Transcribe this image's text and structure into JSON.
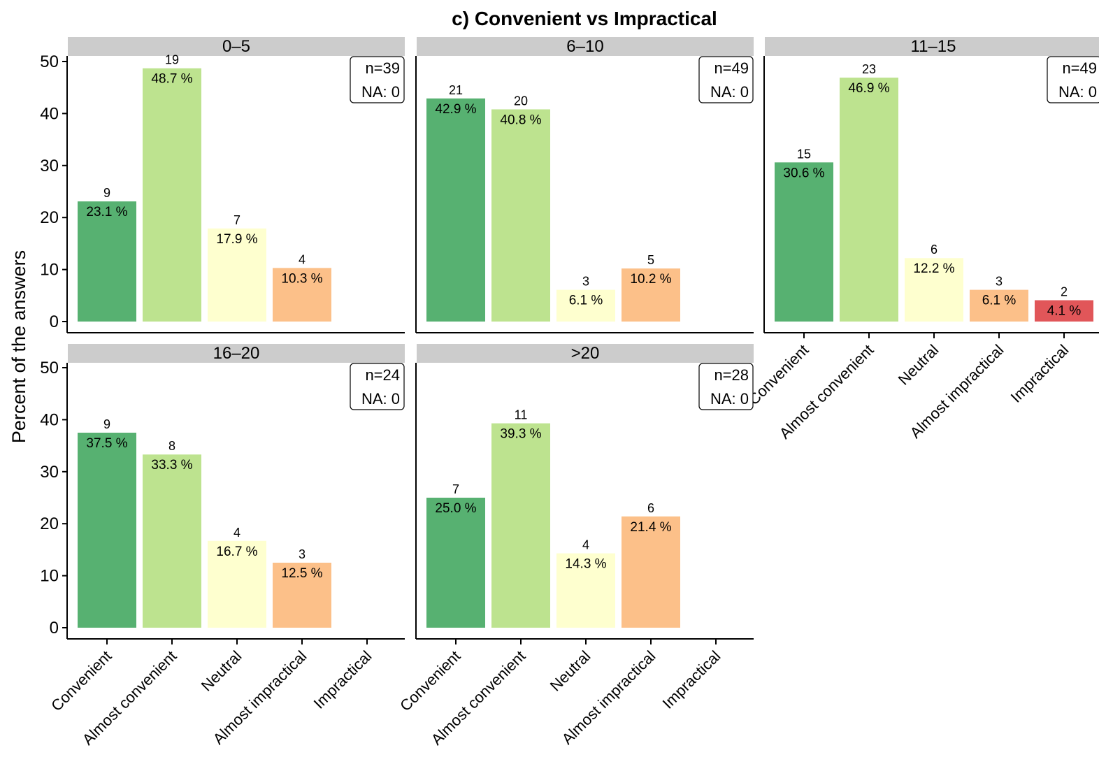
{
  "chart_data": {
    "type": "bar",
    "title": "c) Convenient vs Impractical",
    "ylabel": "Percent of the answers",
    "xlabel": "",
    "ylim": [
      0,
      50
    ],
    "yticks": [
      0,
      10,
      20,
      30,
      40,
      50
    ],
    "grid": false,
    "categories": [
      "Convenient",
      "Almost convenient",
      "Neutral",
      "Almost impractical",
      "Impractical"
    ],
    "colors": {
      "Convenient": "#57b171",
      "Almost convenient": "#bde38f",
      "Neutral": "#feffcf",
      "Almost impractical": "#fcc089",
      "Impractical": "#e15659"
    },
    "panels": [
      {
        "label": "0–5",
        "n_text": "n=39",
        "na_text": "NA: 0",
        "values": [
          23.1,
          48.7,
          17.9,
          10.3,
          null
        ],
        "counts": [
          "9",
          "19",
          "7",
          "4",
          ""
        ],
        "pct_labels": [
          "23.1 %",
          "48.7 %",
          "17.9 %",
          "10.3 %",
          ""
        ]
      },
      {
        "label": "6–10",
        "n_text": "n=49",
        "na_text": "NA: 0",
        "values": [
          42.9,
          40.8,
          6.1,
          10.2,
          null
        ],
        "counts": [
          "21",
          "20",
          "3",
          "5",
          ""
        ],
        "pct_labels": [
          "42.9 %",
          "40.8 %",
          "6.1 %",
          "10.2 %",
          ""
        ]
      },
      {
        "label": "11–15",
        "n_text": "n=49",
        "na_text": "NA: 0",
        "values": [
          30.6,
          46.9,
          12.2,
          6.1,
          4.1
        ],
        "counts": [
          "15",
          "23",
          "6",
          "3",
          "2"
        ],
        "pct_labels": [
          "30.6 %",
          "46.9 %",
          "12.2 %",
          "6.1 %",
          "4.1 %"
        ]
      },
      {
        "label": "16–20",
        "n_text": "n=24",
        "na_text": "NA: 0",
        "values": [
          37.5,
          33.3,
          16.7,
          12.5,
          null
        ],
        "counts": [
          "9",
          "8",
          "4",
          "3",
          ""
        ],
        "pct_labels": [
          "37.5 %",
          "33.3 %",
          "16.7 %",
          "12.5 %",
          ""
        ]
      },
      {
        "label": ">20",
        "n_text": "n=28",
        "na_text": "NA: 0",
        "values": [
          25.0,
          39.3,
          14.3,
          21.4,
          null
        ],
        "counts": [
          "7",
          "11",
          "4",
          "6",
          ""
        ],
        "pct_labels": [
          "25.0 %",
          "39.3 %",
          "14.3 %",
          "21.4 %",
          ""
        ]
      }
    ]
  }
}
